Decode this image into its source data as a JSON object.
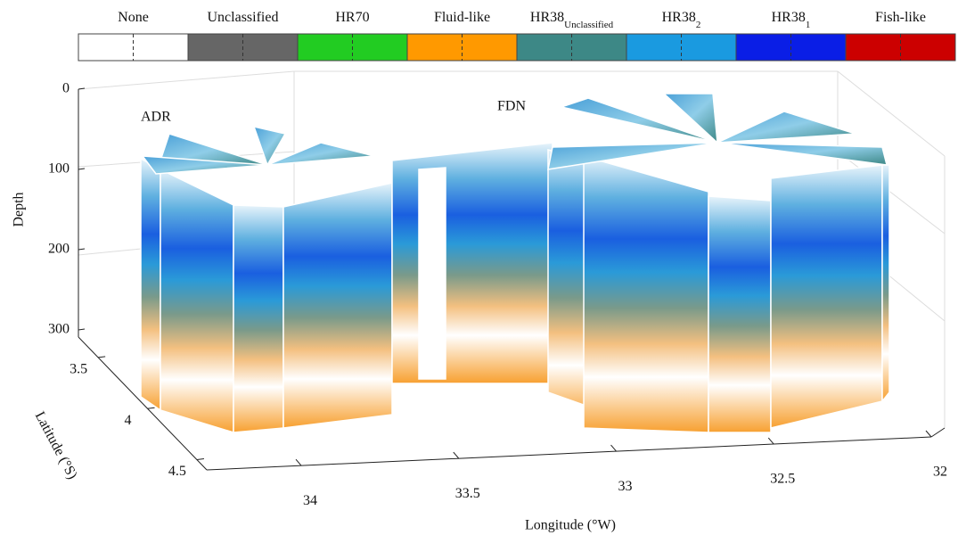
{
  "chart_data": {
    "type": "echogram-3d",
    "legend": [
      {
        "label": "None",
        "color": "#ffffff"
      },
      {
        "label": "Unclassified",
        "color": "#666666"
      },
      {
        "label": "HR70",
        "color": "#22cc22"
      },
      {
        "label": "Fluid-like",
        "color": "#ff9900"
      },
      {
        "label": "HR38",
        "subscript": "Unclassified",
        "color": "#3d8886"
      },
      {
        "label": "HR38",
        "subscript": "2",
        "color": "#1a9ae0"
      },
      {
        "label": "HR38",
        "subscript": "1",
        "color": "#0a1ee6"
      },
      {
        "label": "Fish-like",
        "color": "#cc0000"
      }
    ],
    "annotations": [
      "ADR",
      "FDN"
    ],
    "xlabel": "Longitude (°W)",
    "ylabel": "Latitude (°S)",
    "zlabel": "Depth",
    "xlim": [
      34.3,
      32
    ],
    "xticks": [
      34,
      33.5,
      33,
      32.5,
      32
    ],
    "ylim": [
      3.3,
      4.6
    ],
    "yticks": [
      3.5,
      4,
      4.5
    ],
    "zlim": [
      0,
      300
    ],
    "zticks": [
      0,
      100,
      200,
      300
    ]
  }
}
